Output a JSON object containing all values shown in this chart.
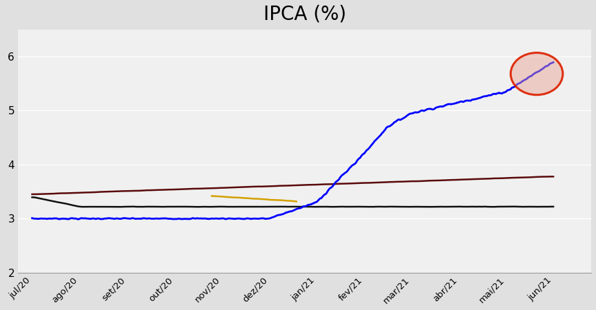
{
  "title": "IPCA (%)",
  "title_fontsize": 20,
  "background_color": "#e0e0e0",
  "plot_background": "#f0f0f0",
  "x_labels": [
    "jul/20",
    "ago/20",
    "set/20",
    "out/20",
    "nov/20",
    "dez/20",
    "jan/21",
    "fev/21",
    "mar/21",
    "abr/21",
    "mai/21",
    "jun/21"
  ],
  "ylim": [
    2.0,
    6.5
  ],
  "yticks": [
    2,
    3,
    4,
    5,
    6
  ],
  "blue_line_color": "#0000ff",
  "dark_red_line_color": "#5a0a0a",
  "black_line_color": "#111111",
  "orange_line_color": "#d4a000",
  "circle_edge_color": "#dd2200",
  "circle_face_color": "#e8a090",
  "circle_alpha": 0.45,
  "circle_linewidth": 2.2
}
